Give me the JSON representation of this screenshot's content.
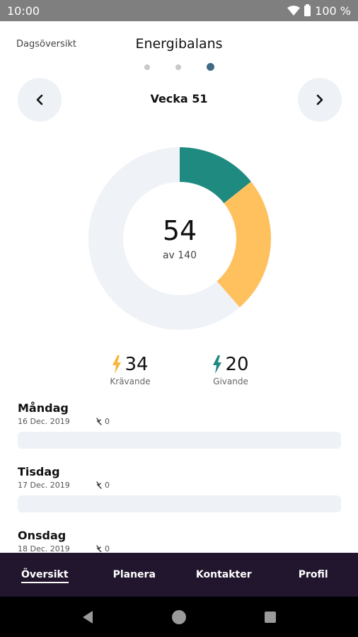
{
  "status_bar": {
    "time": "10:00",
    "battery": "100 %"
  },
  "header": {
    "left_link": "Dagsöversikt",
    "title": "Energibalans",
    "pages": 3,
    "active_page": 2
  },
  "week_nav": {
    "label": "Vecka 51"
  },
  "chart_data": {
    "type": "pie",
    "variant": "donut",
    "total": 140,
    "center_value": "54",
    "center_sub": "av 140",
    "slices": [
      {
        "name": "Givande",
        "value": 20,
        "color": "#1f8a80"
      },
      {
        "name": "Krävande",
        "value": 34,
        "color": "#ffc15e"
      }
    ],
    "remainder_color": "#eff2f6"
  },
  "stats": {
    "demanding": {
      "value": "34",
      "label": "Krävande",
      "color": "#f6b73c"
    },
    "giving": {
      "value": "20",
      "label": "Givande",
      "color": "#1f8a80"
    }
  },
  "days": [
    {
      "name": "Måndag",
      "date": "16 Dec. 2019",
      "count": "0"
    },
    {
      "name": "Tisdag",
      "date": "17 Dec. 2019",
      "count": "0"
    },
    {
      "name": "Onsdag",
      "date": "18 Dec. 2019",
      "count": "0"
    }
  ],
  "bottom_nav": {
    "tabs": [
      "Översikt",
      "Planera",
      "Kontakter",
      "Profil"
    ],
    "active": 0
  }
}
